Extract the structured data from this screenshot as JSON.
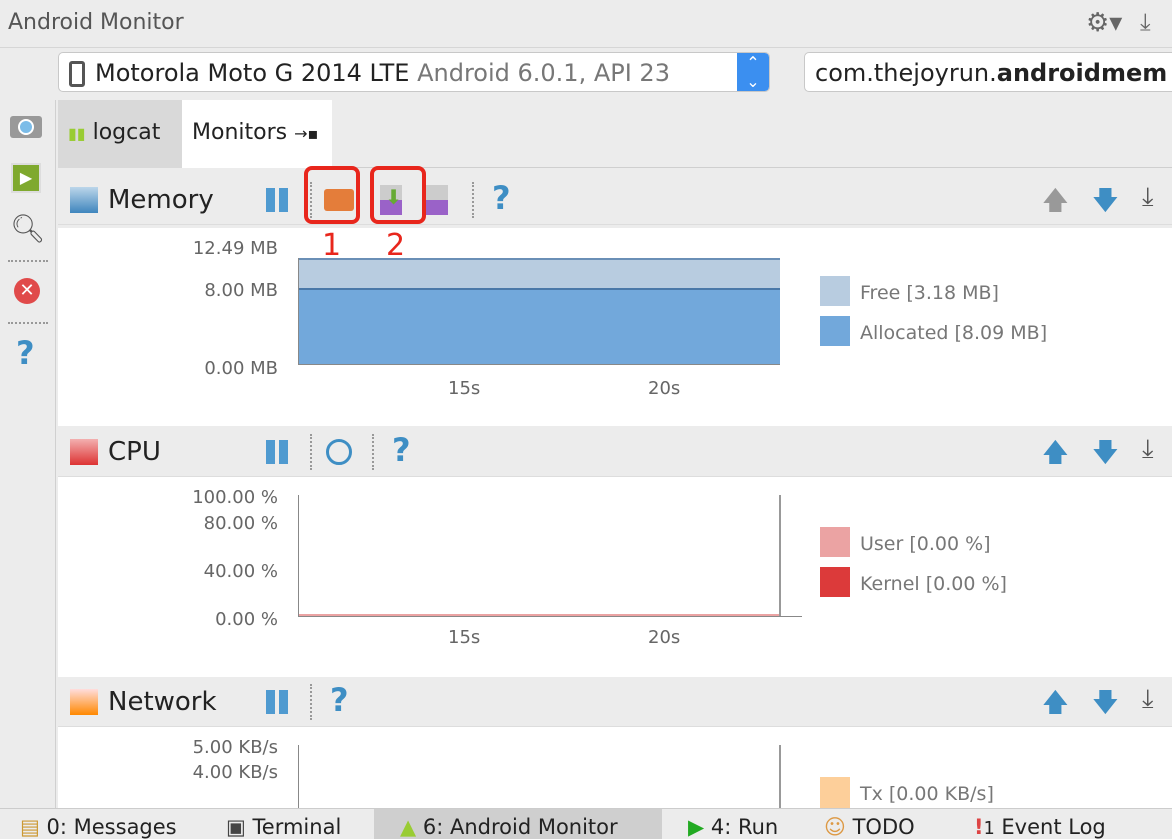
{
  "window": {
    "title": "Android Monitor"
  },
  "device": {
    "name": "Motorola Moto G 2014 LTE",
    "detail": "Android 6.0.1, API 23",
    "process_prefix": "com.thejoyrun.",
    "process_bold": "androidmem"
  },
  "tabs": [
    {
      "label": "logcat"
    },
    {
      "label": "Monitors",
      "active": true
    }
  ],
  "memory": {
    "title": "Memory",
    "yticks": [
      "12.49 MB",
      "8.00 MB",
      "0.00 MB"
    ],
    "xticks": [
      "15s",
      "20s"
    ],
    "legend": [
      {
        "label": "Free [3.18 MB]",
        "color": "#b8cce0"
      },
      {
        "label": "Allocated [8.09 MB]",
        "color": "#72a8db"
      }
    ],
    "annotations": [
      "1",
      "2"
    ],
    "chart_data": {
      "type": "area",
      "ylim": [
        0,
        12.49
      ],
      "allocated_mb": 8.09,
      "free_mb": 3.18
    }
  },
  "cpu": {
    "title": "CPU",
    "yticks": [
      "100.00 %",
      "80.00 %",
      "40.00 %",
      "0.00 %"
    ],
    "xticks": [
      "15s",
      "20s"
    ],
    "legend": [
      {
        "label": "User [0.00 %]",
        "color": "#eba3a3"
      },
      {
        "label": "Kernel [0.00 %]",
        "color": "#dc3a3a"
      }
    ]
  },
  "network": {
    "title": "Network",
    "yticks": [
      "5.00 KB/s",
      "4.00 KB/s"
    ],
    "legend": [
      {
        "label": "Tx [0.00 KB/s]",
        "color": "#fdcf9a"
      }
    ]
  },
  "bottom": {
    "items": [
      "0: Messages",
      "Terminal",
      "6: Android Monitor",
      "4: Run",
      "TODO",
      "Event Log"
    ],
    "event_count": "1"
  },
  "help": "?"
}
